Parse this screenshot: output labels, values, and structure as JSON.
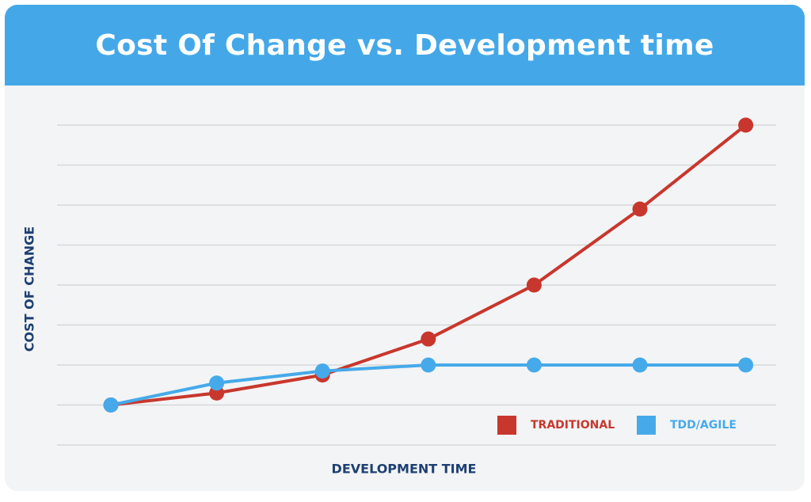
{
  "chart_data": {
    "type": "line",
    "title": "Cost Of Change vs. Development time",
    "xlabel": "DEVELOPMENT TIME",
    "ylabel": "COST OF CHANGE",
    "x": [
      1,
      2,
      3,
      4,
      5,
      6,
      7
    ],
    "xlim": [
      0.5,
      7.5
    ],
    "ylim": [
      0,
      8
    ],
    "grid": true,
    "legend_position": "bottom-right",
    "series": [
      {
        "name": "TRADITIONAL",
        "color": "#c8372d",
        "values": [
          1.0,
          1.3,
          1.75,
          2.65,
          4.0,
          5.9,
          8.0
        ]
      },
      {
        "name": "TDD/AGILE",
        "color": "#46aaea",
        "values": [
          1.0,
          1.55,
          1.85,
          2.0,
          2.0,
          2.0,
          2.0
        ]
      }
    ]
  }
}
